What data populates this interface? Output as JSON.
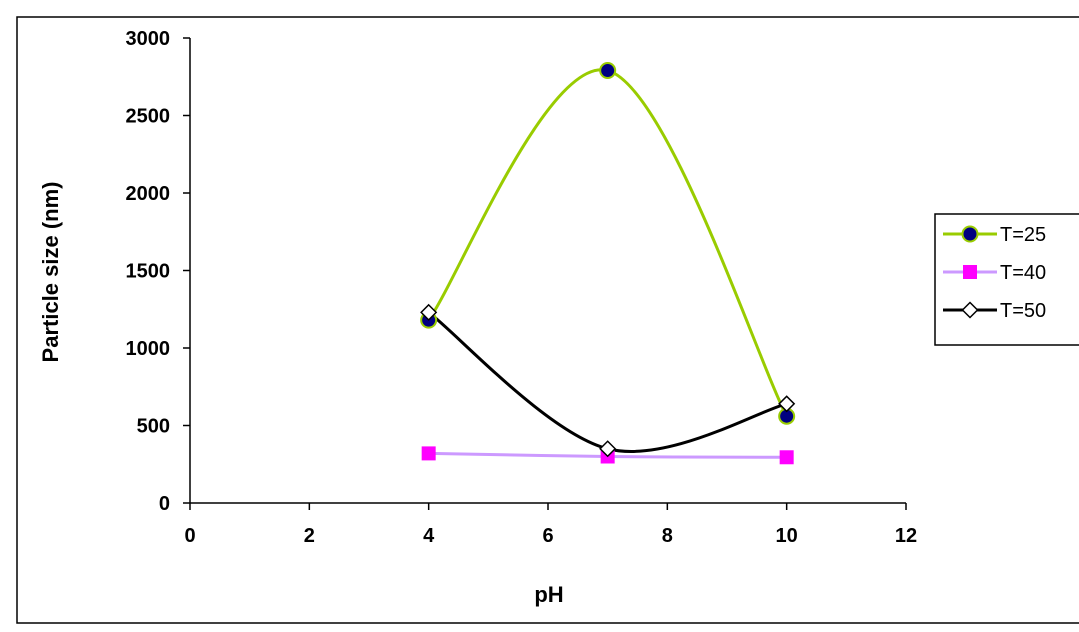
{
  "chart_data": {
    "type": "line",
    "xlabel": "pH",
    "ylabel": "Particle size (nm)",
    "xlim": [
      0,
      12
    ],
    "ylim": [
      0,
      3000
    ],
    "xticks": [
      0,
      2,
      4,
      6,
      8,
      10,
      12
    ],
    "yticks": [
      0,
      500,
      1000,
      1500,
      2000,
      2500,
      3000
    ],
    "grid": false,
    "smooth": true,
    "legend_position": "right",
    "series": [
      {
        "name": "T=25",
        "x": [
          4,
          7,
          10
        ],
        "y": [
          1180,
          2790,
          560
        ],
        "line_color": "#99cc00",
        "marker": "circle",
        "marker_fill": "#000080",
        "marker_edge": "#99cc00"
      },
      {
        "name": "T=40",
        "x": [
          4,
          7,
          10
        ],
        "y": [
          320,
          300,
          295
        ],
        "line_color": "#cc99ff",
        "marker": "square",
        "marker_fill": "#ff00ff",
        "marker_edge": "#ff00ff"
      },
      {
        "name": "T=50",
        "x": [
          4,
          7,
          10
        ],
        "y": [
          1230,
          350,
          640
        ],
        "line_color": "#000000",
        "marker": "diamond",
        "marker_fill": "#ffffff",
        "marker_edge": "#000000"
      }
    ]
  }
}
